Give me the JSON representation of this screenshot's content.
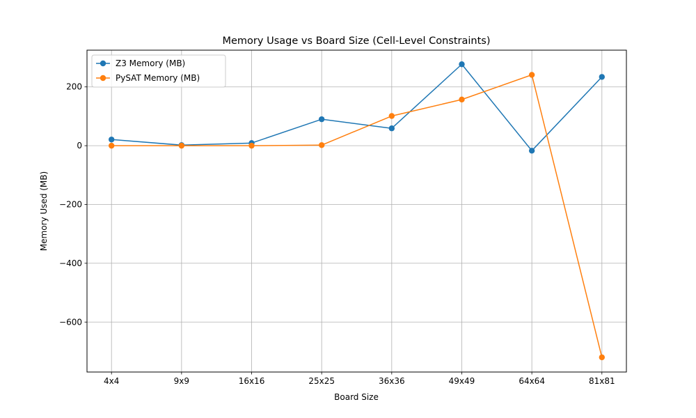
{
  "chart_data": {
    "type": "line",
    "title": "Memory Usage vs Board Size (Cell-Level Constraints)",
    "xlabel": "Board Size",
    "ylabel": "Memory Used (MB)",
    "categories": [
      "4x4",
      "9x9",
      "16x16",
      "25x25",
      "36x36",
      "49x49",
      "64x64",
      "81x81"
    ],
    "y_ticks": [
      200,
      0,
      -200,
      -400,
      -600
    ],
    "y_tick_labels": [
      "200",
      "0",
      "−200",
      "−400",
      "−600"
    ],
    "ylim": [
      -770,
      325
    ],
    "grid": true,
    "legend_position": "top-left",
    "series": [
      {
        "name": "Z3 Memory (MB)",
        "color": "#1f77b4",
        "values": [
          21,
          2,
          9,
          90,
          59,
          277,
          -17,
          234
        ]
      },
      {
        "name": "PySAT Memory (MB)",
        "color": "#ff7f0e",
        "values": [
          0,
          0,
          0,
          2,
          101,
          157,
          241,
          -720
        ]
      }
    ]
  }
}
